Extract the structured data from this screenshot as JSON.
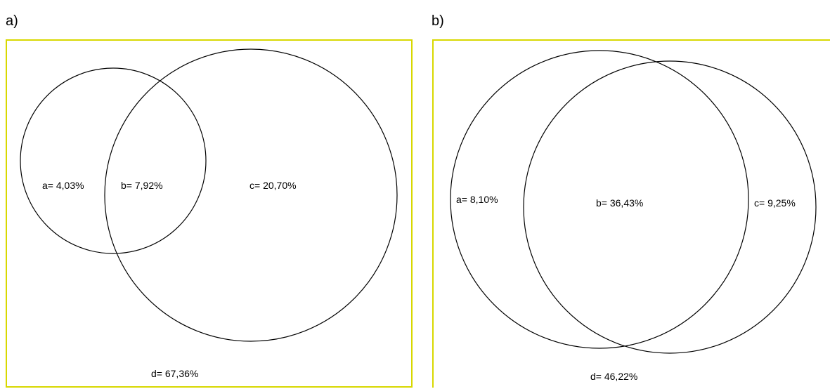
{
  "panels": [
    {
      "label": "a)",
      "regions": {
        "a": "a= 4,03%",
        "b": "b= 7,92%",
        "c": "c= 20,70%",
        "d": "d= 67,36%"
      }
    },
    {
      "label": "b)",
      "regions": {
        "a": "a= 8,10%",
        "b": "b= 36,43%",
        "c": "c= 9,25%",
        "d": "d= 46,22%"
      }
    }
  ],
  "colors": {
    "frame_border": "#d8d800",
    "circle_stroke": "#000000"
  }
}
